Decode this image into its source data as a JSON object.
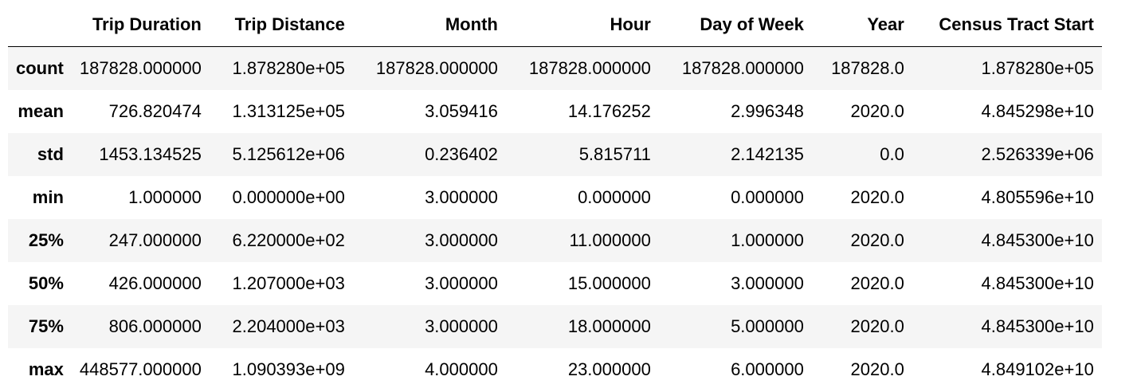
{
  "dataframe": {
    "columns": [
      "",
      "Trip Duration",
      "Trip Distance",
      "Month",
      "Hour",
      "Day of Week",
      "Year",
      "Census Tract Start"
    ],
    "rows": [
      {
        "index": "count",
        "cells": [
          "187828.000000",
          "1.878280e+05",
          "187828.000000",
          "187828.000000",
          "187828.000000",
          "187828.0",
          "1.878280e+05"
        ]
      },
      {
        "index": "mean",
        "cells": [
          "726.820474",
          "1.313125e+05",
          "3.059416",
          "14.176252",
          "2.996348",
          "2020.0",
          "4.845298e+10"
        ]
      },
      {
        "index": "std",
        "cells": [
          "1453.134525",
          "5.125612e+06",
          "0.236402",
          "5.815711",
          "2.142135",
          "0.0",
          "2.526339e+06"
        ]
      },
      {
        "index": "min",
        "cells": [
          "1.000000",
          "0.000000e+00",
          "3.000000",
          "0.000000",
          "0.000000",
          "2020.0",
          "4.805596e+10"
        ]
      },
      {
        "index": "25%",
        "cells": [
          "247.000000",
          "6.220000e+02",
          "3.000000",
          "11.000000",
          "1.000000",
          "2020.0",
          "4.845300e+10"
        ]
      },
      {
        "index": "50%",
        "cells": [
          "426.000000",
          "1.207000e+03",
          "3.000000",
          "15.000000",
          "3.000000",
          "2020.0",
          "4.845300e+10"
        ]
      },
      {
        "index": "75%",
        "cells": [
          "806.000000",
          "2.204000e+03",
          "3.000000",
          "18.000000",
          "5.000000",
          "2020.0",
          "4.845300e+10"
        ]
      },
      {
        "index": "max",
        "cells": [
          "448577.000000",
          "1.090393e+09",
          "4.000000",
          "23.000000",
          "6.000000",
          "2020.0",
          "4.849102e+10"
        ]
      }
    ]
  }
}
